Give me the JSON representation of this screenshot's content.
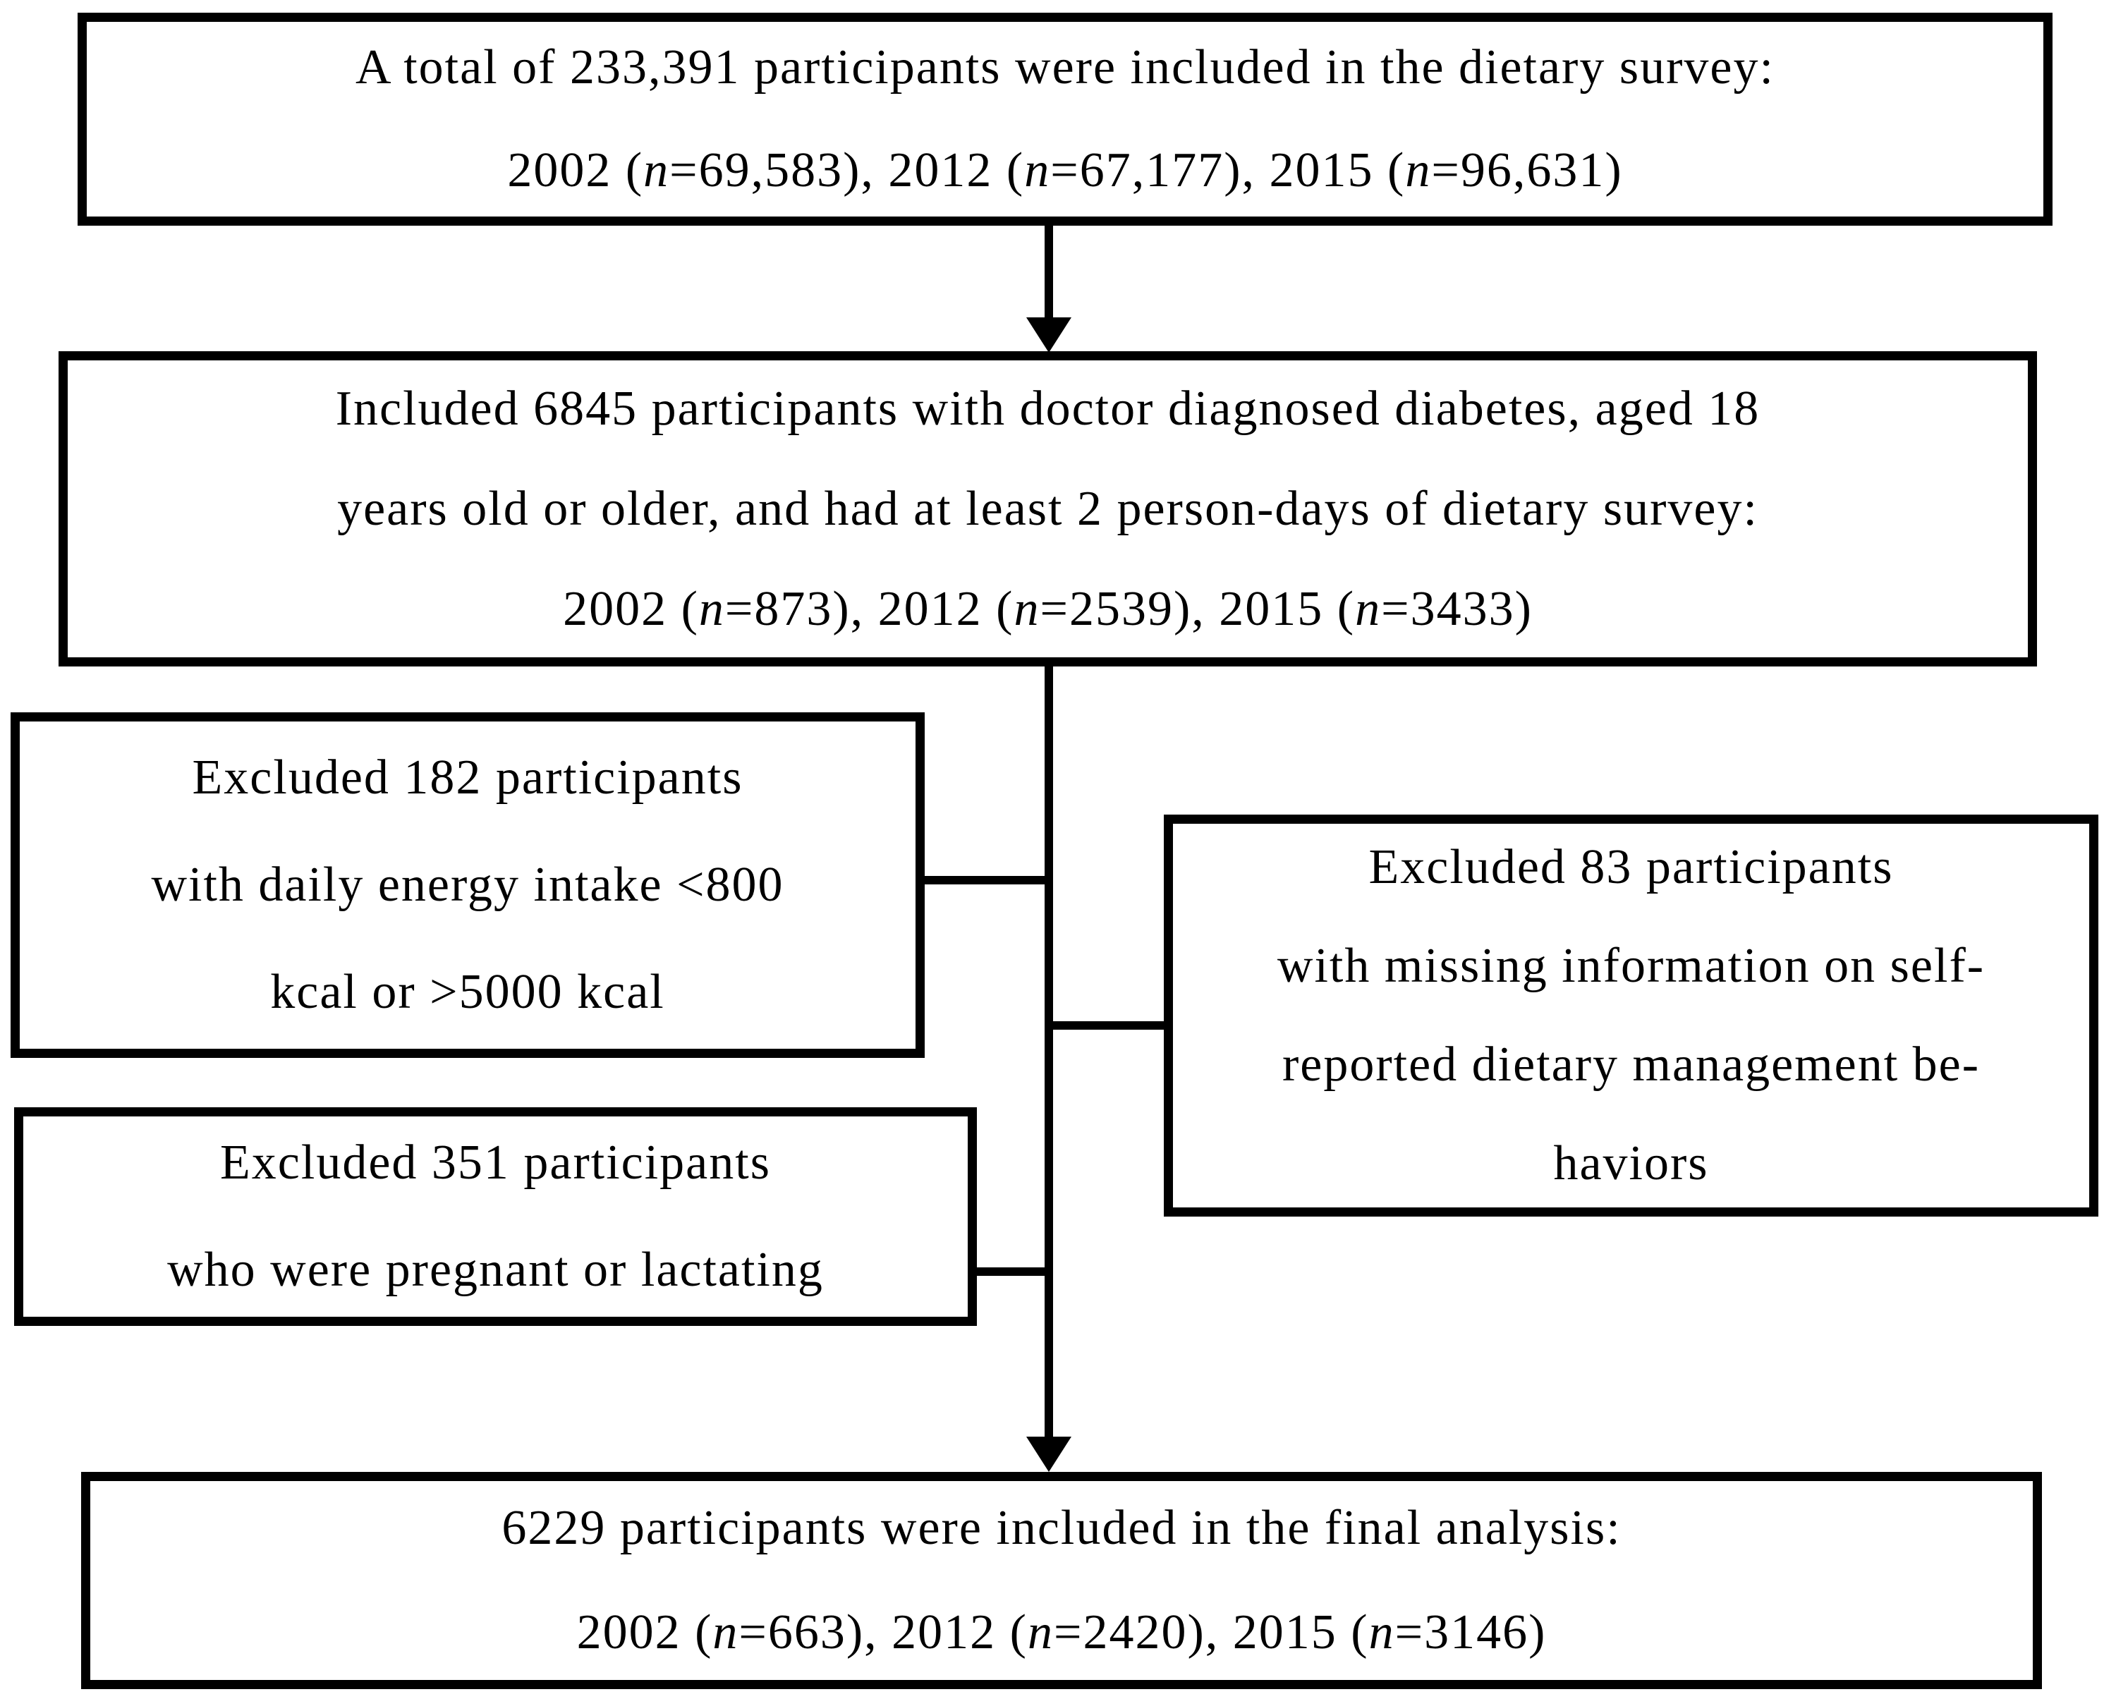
{
  "figure": {
    "type": "participant-flow-diagram",
    "colors": {
      "ink": "#000000",
      "background": "#ffffff"
    },
    "boxes": {
      "total": {
        "lines": [
          [
            {
              "t": "A total of 233,391 participants were included in the dietary survey:"
            }
          ],
          [
            {
              "t": "2002 ("
            },
            {
              "t": "n",
              "i": true
            },
            {
              "t": "=69,583), 2012 ("
            },
            {
              "t": "n",
              "i": true
            },
            {
              "t": "=67,177), 2015 ("
            },
            {
              "t": "n",
              "i": true
            },
            {
              "t": "=96,631)"
            }
          ]
        ]
      },
      "included": {
        "lines": [
          [
            {
              "t": "Included 6845 participants with doctor diagnosed diabetes, aged 18"
            }
          ],
          [
            {
              "t": "years old or older, and had at least 2 person-days of dietary survey:"
            }
          ],
          [
            {
              "t": "2002 ("
            },
            {
              "t": "n",
              "i": true
            },
            {
              "t": "=873), 2012 ("
            },
            {
              "t": "n",
              "i": true
            },
            {
              "t": "=2539), 2015 ("
            },
            {
              "t": "n",
              "i": true
            },
            {
              "t": "=3433)"
            }
          ]
        ]
      },
      "excluded_energy": {
        "lines": [
          [
            {
              "t": "Excluded 182 participants"
            }
          ],
          [
            {
              "t": "with daily energy intake <800"
            }
          ],
          [
            {
              "t": "kcal or >5000 kcal"
            }
          ]
        ]
      },
      "excluded_missing": {
        "lines": [
          [
            {
              "t": "Excluded 83 participants"
            }
          ],
          [
            {
              "t": "with missing information on self-"
            }
          ],
          [
            {
              "t": "reported dietary management be-"
            }
          ],
          [
            {
              "t": "haviors"
            }
          ]
        ]
      },
      "excluded_pregnant": {
        "lines": [
          [
            {
              "t": "Excluded 351 participants"
            }
          ],
          [
            {
              "t": "who were pregnant or lactating"
            }
          ]
        ]
      },
      "final": {
        "lines": [
          [
            {
              "t": "6229 participants were included in the final analysis:"
            }
          ],
          [
            {
              "t": "2002 ("
            },
            {
              "t": "n",
              "i": true
            },
            {
              "t": "=663), 2012 ("
            },
            {
              "t": "n",
              "i": true
            },
            {
              "t": "=2420), 2015 ("
            },
            {
              "t": "n",
              "i": true
            },
            {
              "t": "=3146)"
            }
          ]
        ]
      }
    }
  }
}
